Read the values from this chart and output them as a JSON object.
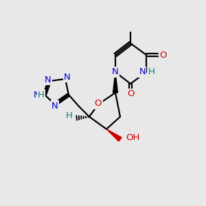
{
  "background_color": "#e8e8e8",
  "atom_colors": {
    "C": "#000000",
    "N": "#0000cc",
    "O": "#cc0000",
    "H": "#008080"
  },
  "figsize": [
    3.0,
    3.0
  ],
  "dpi": 100
}
